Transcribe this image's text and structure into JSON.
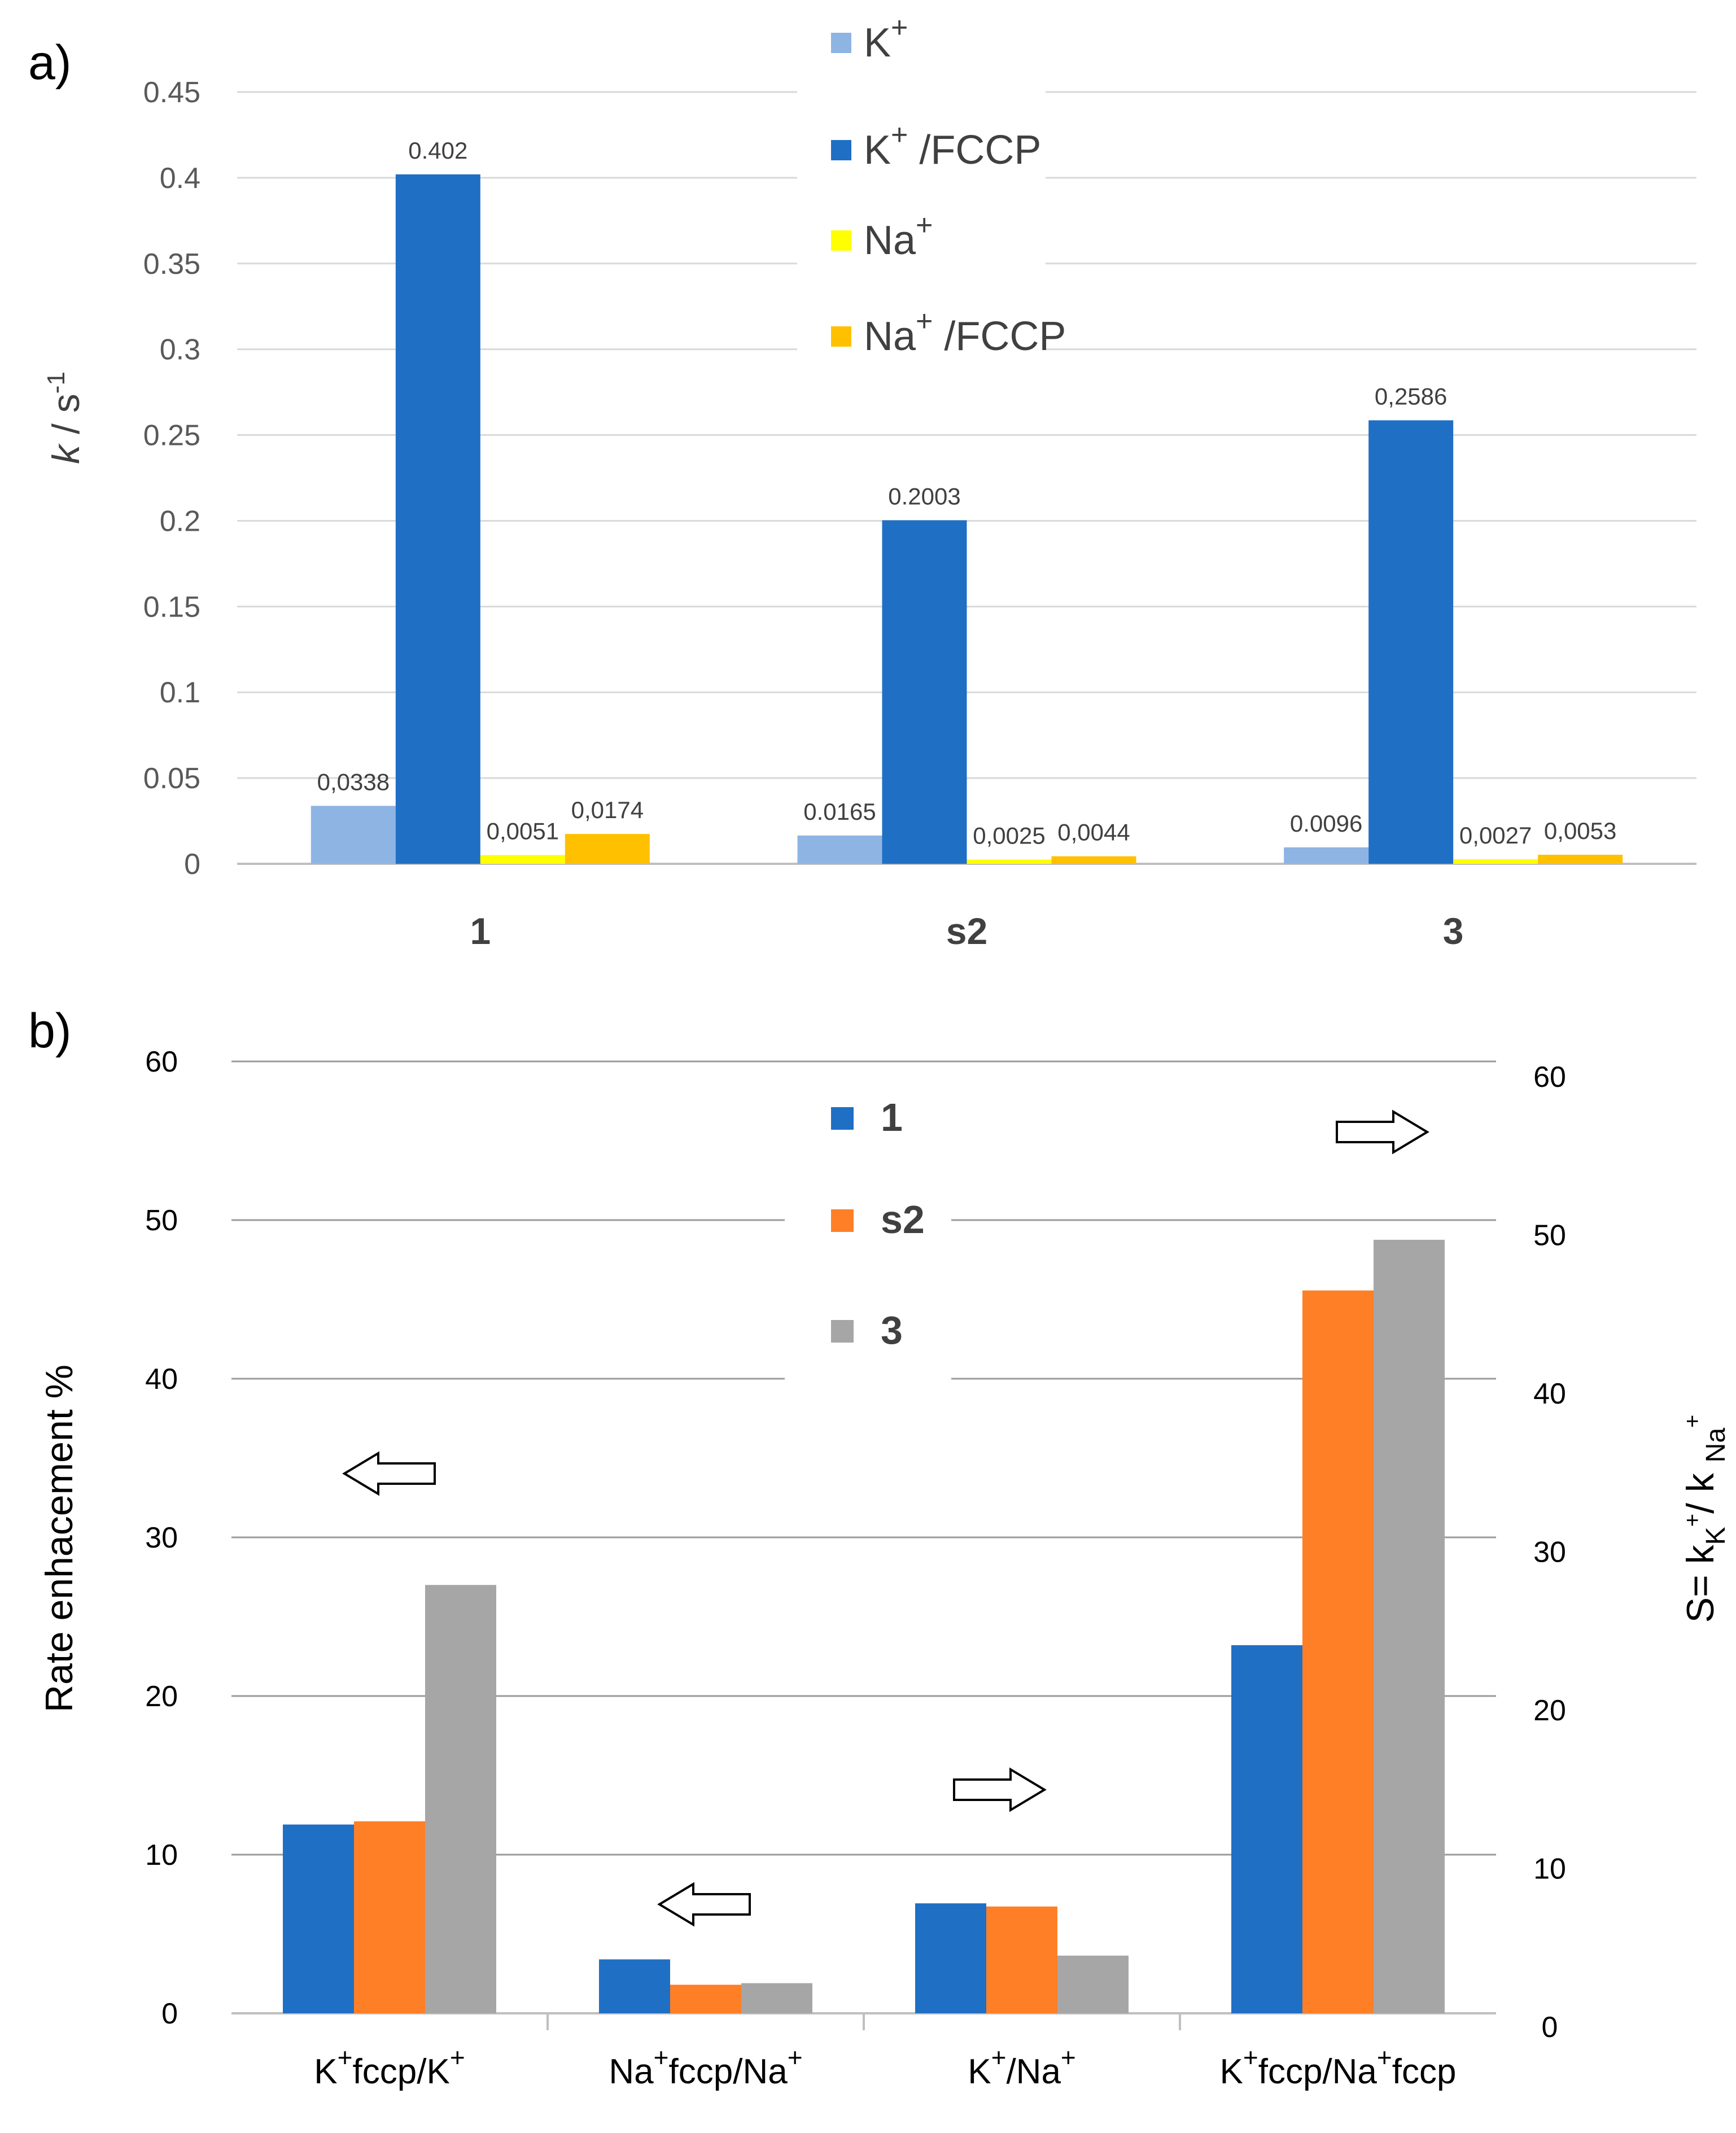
{
  "chart_data": [
    {
      "panel": "a)",
      "type": "bar",
      "categories": [
        "1",
        "s2",
        "3"
      ],
      "ylabel_italic": "k",
      "ylabel_rest": " / s",
      "ylabel_sup": "-1",
      "ylim": [
        0,
        0.45
      ],
      "yticks": [
        "0",
        "0.05",
        "0.1",
        "0.15",
        "0.2",
        "0.25",
        "0.3",
        "0.35",
        "0.4",
        "0.45"
      ],
      "legend_position": "top-center",
      "series": [
        {
          "name": "K",
          "sup": "+",
          "suffix": "",
          "color": "#8EB4E3",
          "values": [
            0.0338,
            0.0165,
            0.0096
          ],
          "labels": [
            "0,0338",
            "0.0165",
            "0.0096"
          ]
        },
        {
          "name": "K",
          "sup": "+",
          "suffix": " /FCCP",
          "color": "#1F6FC5",
          "values": [
            0.402,
            0.2003,
            0.2586
          ],
          "labels": [
            "0.402",
            "0.2003",
            "0,2586"
          ]
        },
        {
          "name": "Na",
          "sup": "+",
          "suffix": "",
          "color": "#FFFF00",
          "values": [
            0.0051,
            0.0025,
            0.0027
          ],
          "labels": [
            "0,0051",
            "0,0025",
            "0,0027"
          ]
        },
        {
          "name": "Na",
          "sup": "+",
          "suffix": " /FCCP",
          "color": "#FFC000",
          "values": [
            0.0174,
            0.0044,
            0.0053
          ],
          "labels": [
            "0,0174",
            "0,0044",
            "0,0053"
          ]
        }
      ]
    },
    {
      "panel": "b)",
      "type": "bar",
      "categories": [
        {
          "p1": "K",
          "s1": "+",
          "p2": "fccp/K",
          "s2": "+",
          "p3": ""
        },
        {
          "p1": "Na",
          "s1": "+",
          "p2": "fccp/Na",
          "s2": "+",
          "p3": ""
        },
        {
          "p1": "K",
          "s1": "+",
          "p2": "/Na",
          "s2": "+",
          "p3": ""
        },
        {
          "p1": "K",
          "s1": "+",
          "p2": "fccp/Na",
          "s2": "+",
          "p3": "fccp"
        }
      ],
      "ylabel_left": "Rate enhacement %",
      "ylabel_right": {
        "a": "S= k",
        "b": "K",
        "c": "+",
        "d": "/ k ",
        "e": "Na",
        "f": "+"
      },
      "ylim_left": [
        0,
        60
      ],
      "yticks_left": [
        "0",
        "10",
        "20",
        "30",
        "40",
        "50",
        "60"
      ],
      "ylim_right": [
        0,
        60
      ],
      "yticks_right": [
        "0",
        "10",
        "20",
        "30",
        "40",
        "50",
        "60"
      ],
      "legend_position": "top-center",
      "axis_used": [
        "left",
        "left",
        "right",
        "right"
      ],
      "series": [
        {
          "name": "1",
          "color": "#1F6FC5",
          "values": [
            11.9,
            3.4,
            7.8,
            24.1
          ]
        },
        {
          "name": "s2",
          "color": "#FF7F27",
          "values": [
            12.1,
            1.8,
            7.6,
            46.5
          ]
        },
        {
          "name": "3",
          "color": "#A6A6A6",
          "values": [
            27.0,
            1.9,
            4.5,
            49.7
          ]
        }
      ]
    }
  ]
}
